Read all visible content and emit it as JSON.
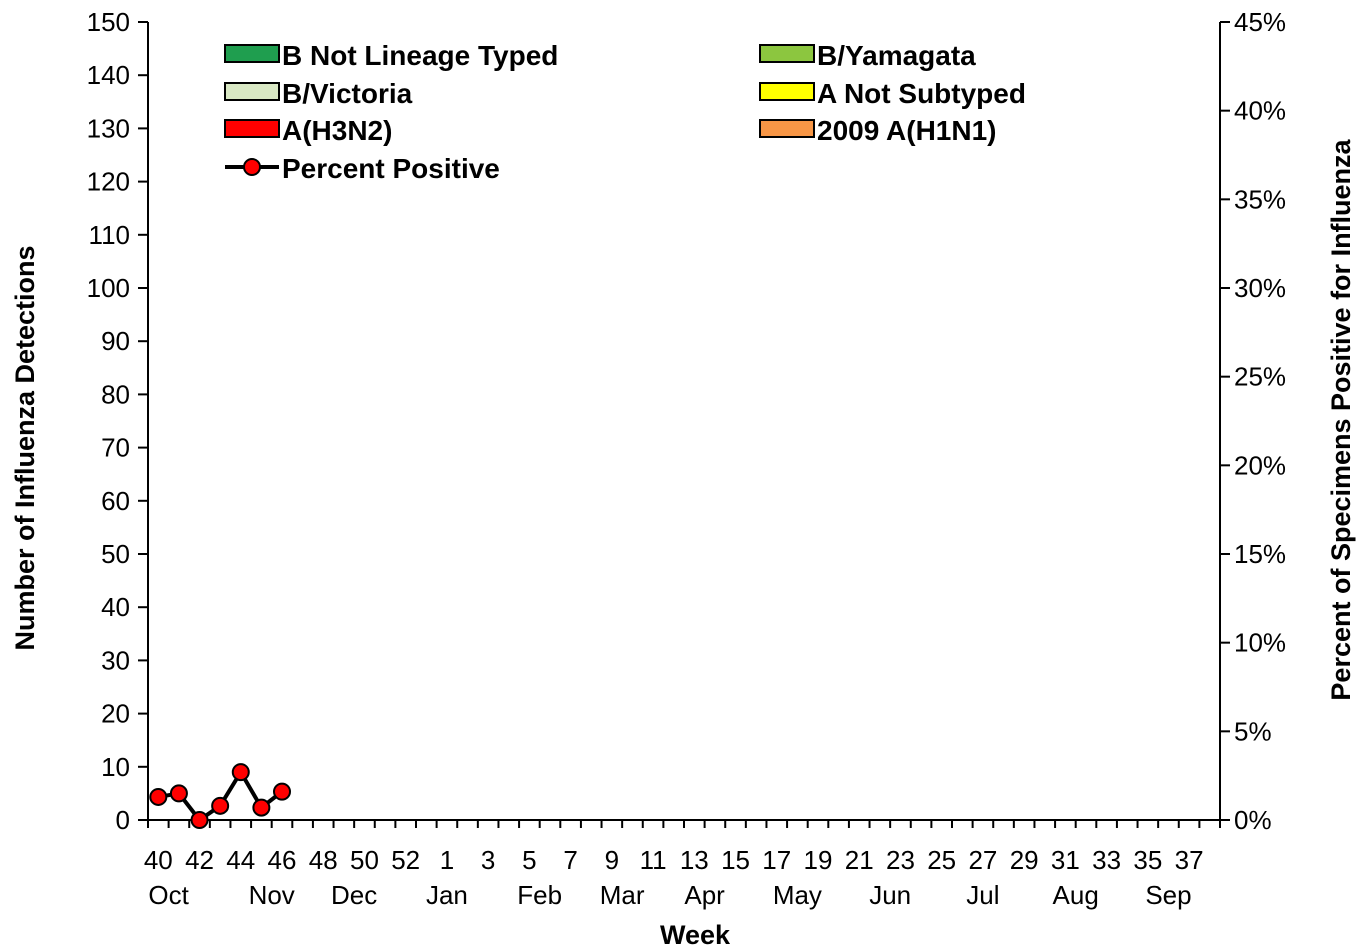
{
  "chart_data": {
    "type": "bar+line",
    "xlabel": "Week",
    "ylabel_left": "Number of Influenza Detections",
    "ylabel_right": "Percent of Specimens Positive for Influenza",
    "ylim_left": [
      0,
      150
    ],
    "ylim_right": [
      0,
      45
    ],
    "yticks_left": [
      "0",
      "10",
      "20",
      "30",
      "40",
      "50",
      "60",
      "70",
      "80",
      "90",
      "100",
      "110",
      "120",
      "130",
      "140",
      "150"
    ],
    "yticks_right": [
      "0%",
      "5%",
      "10%",
      "15%",
      "20%",
      "25%",
      "30%",
      "35%",
      "40%",
      "45%"
    ],
    "weeks": [
      40,
      41,
      42,
      43,
      44,
      45,
      46,
      47,
      48,
      49,
      50,
      51,
      52,
      1,
      2,
      3,
      4,
      5,
      6,
      7,
      8,
      9,
      10,
      11,
      12,
      13,
      14,
      15,
      16,
      17,
      18,
      19,
      20,
      21,
      22,
      23,
      24,
      25,
      26,
      27,
      28,
      29,
      30,
      31,
      32,
      33,
      34,
      35,
      36,
      37,
      38,
      39
    ],
    "week_tick_labels": [
      "40",
      "42",
      "44",
      "46",
      "48",
      "50",
      "52",
      "1",
      "3",
      "5",
      "7",
      "9",
      "11",
      "13",
      "15",
      "17",
      "19",
      "21",
      "23",
      "25",
      "27",
      "29",
      "31",
      "33",
      "35",
      "37",
      "39"
    ],
    "month_labels": [
      "Oct",
      "Nov",
      "Dec",
      "Jan",
      "Feb",
      "Mar",
      "Apr",
      "May",
      "Jun",
      "Jul",
      "Aug",
      "Sep"
    ],
    "legend": [
      {
        "label": "B Not Lineage Typed",
        "color": "#1f9e4f",
        "kind": "bar"
      },
      {
        "label": "B/Yamagata",
        "color": "#8cc63f",
        "kind": "bar"
      },
      {
        "label": "B/Victoria",
        "color": "#d9e8c4",
        "kind": "bar"
      },
      {
        "label": "A Not Subtyped",
        "color": "#ffff00",
        "kind": "bar"
      },
      {
        "label": "A(H3N2)",
        "color": "#ff0000",
        "kind": "bar"
      },
      {
        "label": "2009 A(H1N1)",
        "color": "#f79646",
        "kind": "bar"
      },
      {
        "label": "Percent Positive",
        "color": "#ff0000",
        "kind": "line"
      }
    ],
    "series": [
      {
        "name": "B Not Lineage Typed",
        "values": [
          0,
          0,
          0,
          0,
          0,
          0,
          0
        ]
      },
      {
        "name": "B/Yamagata",
        "values": [
          0,
          0,
          0,
          0,
          0,
          0,
          0
        ]
      },
      {
        "name": "B/Victoria",
        "values": [
          0,
          0,
          0,
          0,
          0,
          0,
          0
        ]
      },
      {
        "name": "A Not Subtyped",
        "values": [
          0,
          0,
          0,
          0,
          0,
          0,
          0
        ]
      },
      {
        "name": "A(H3N2)",
        "values": [
          0,
          0,
          0,
          0,
          0,
          0,
          0
        ]
      },
      {
        "name": "2009 A(H1N1)",
        "values": [
          0,
          0,
          0,
          0,
          0,
          0,
          0
        ]
      },
      {
        "name": "Percent Positive",
        "axis": "right",
        "x": [
          40,
          41,
          42,
          43,
          44,
          45,
          46
        ],
        "values": [
          1.3,
          1.5,
          0.0,
          0.8,
          2.7,
          0.7,
          1.6
        ]
      }
    ],
    "grid": false
  }
}
